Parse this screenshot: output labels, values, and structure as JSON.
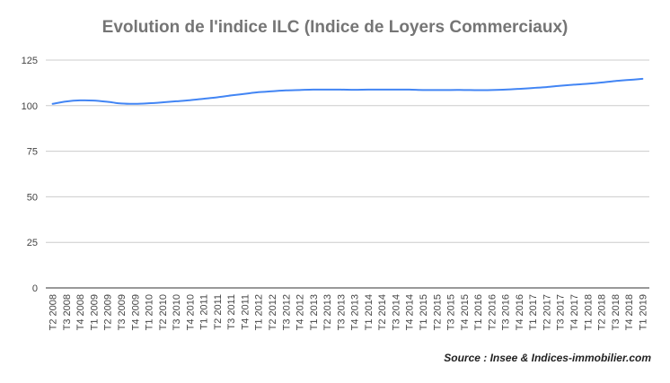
{
  "chart_data": {
    "type": "line",
    "title": "Evolution de l'indice ILC (Indice de Loyers Commerciaux)",
    "source": "Source : Insee & Indices-immobilier.com",
    "xlabel": "",
    "ylabel": "",
    "ylim": [
      0,
      125
    ],
    "yticks": [
      0,
      25,
      50,
      75,
      100,
      125
    ],
    "grid": true,
    "legend": "none",
    "categories": [
      "T2 2008",
      "T3 2008",
      "T4 2008",
      "T1 2009",
      "T2 2009",
      "T3 2009",
      "T4 2009",
      "T1 2010",
      "T2 2010",
      "T3 2010",
      "T4 2010",
      "T1 2011",
      "T2 2011",
      "T3 2011",
      "T4 2011",
      "T1 2012",
      "T2 2012",
      "T3 2012",
      "T4 2012",
      "T1 2013",
      "T2 2013",
      "T3 2013",
      "T4 2013",
      "T1 2014",
      "T2 2014",
      "T3 2014",
      "T4 2014",
      "T1 2015",
      "T2 2015",
      "T3 2015",
      "T4 2015",
      "T1 2016",
      "T2 2016",
      "T3 2016",
      "T4 2016",
      "T1 2017",
      "T2 2017",
      "T3 2017",
      "T4 2017",
      "T1 2018",
      "T2 2018",
      "T3 2018",
      "T4 2018",
      "T1 2019"
    ],
    "series": [
      {
        "color": "#4285f4",
        "values": [
          101.0,
          102.3,
          102.9,
          102.8,
          102.1,
          101.2,
          101.0,
          101.3,
          101.8,
          102.4,
          103.0,
          103.8,
          104.6,
          105.6,
          106.5,
          107.4,
          107.9,
          108.4,
          108.6,
          108.8,
          108.8,
          108.8,
          108.7,
          108.8,
          108.8,
          108.8,
          108.8,
          108.6,
          108.6,
          108.6,
          108.6,
          108.5,
          108.6,
          108.8,
          109.2,
          109.7,
          110.2,
          110.9,
          111.5,
          112.0,
          112.7,
          113.5,
          114.1,
          114.7
        ]
      }
    ]
  }
}
